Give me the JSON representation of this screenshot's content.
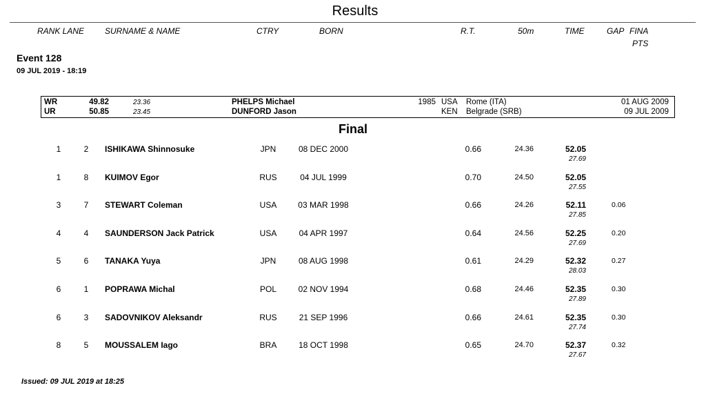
{
  "header": {
    "title": "Results",
    "columns": {
      "rank_lane": "RANK LANE",
      "name": "SURNAME & NAME",
      "ctry": "CTRY",
      "born": "BORN",
      "rt": "R.T.",
      "split": "50m",
      "time": "TIME",
      "gap": "GAP",
      "fina": "FINA",
      "pts": "PTS"
    }
  },
  "event": {
    "name": "Event 128",
    "datetime": "09 JUL 2019 - 18:19"
  },
  "records": [
    {
      "code": "WR",
      "time": "49.82",
      "split": "23.36",
      "name": "PHELPS Michael",
      "born": "1985",
      "ctry": "USA",
      "place": "Rome (ITA)",
      "date": "01 AUG 2009"
    },
    {
      "code": "UR",
      "time": "50.85",
      "split": "23.45",
      "name": "DUNFORD Jason",
      "born": "",
      "ctry": "KEN",
      "place": "Belgrade (SRB)",
      "date": "09 JUL 2009"
    }
  ],
  "phase": "Final",
  "results": [
    {
      "rank": "1",
      "lane": "2",
      "name": "ISHIKAWA Shinnosuke",
      "ctry": "JPN",
      "born": "08 DEC 2000",
      "rt": "0.66",
      "split50": "24.36",
      "time": "52.05",
      "split100": "27.69",
      "gap": ""
    },
    {
      "rank": "1",
      "lane": "8",
      "name": "KUIMOV Egor",
      "ctry": "RUS",
      "born": "04 JUL 1999",
      "rt": "0.70",
      "split50": "24.50",
      "time": "52.05",
      "split100": "27.55",
      "gap": ""
    },
    {
      "rank": "3",
      "lane": "7",
      "name": "STEWART Coleman",
      "ctry": "USA",
      "born": "03 MAR 1998",
      "rt": "0.66",
      "split50": "24.26",
      "time": "52.11",
      "split100": "27.85",
      "gap": "0.06"
    },
    {
      "rank": "4",
      "lane": "4",
      "name": "SAUNDERSON Jack Patrick",
      "ctry": "USA",
      "born": "04 APR 1997",
      "rt": "0.64",
      "split50": "24.56",
      "time": "52.25",
      "split100": "27.69",
      "gap": "0.20"
    },
    {
      "rank": "5",
      "lane": "6",
      "name": "TANAKA Yuya",
      "ctry": "JPN",
      "born": "08 AUG 1998",
      "rt": "0.61",
      "split50": "24.29",
      "time": "52.32",
      "split100": "28.03",
      "gap": "0.27"
    },
    {
      "rank": "6",
      "lane": "1",
      "name": "POPRAWA Michal",
      "ctry": "POL",
      "born": "02 NOV 1994",
      "rt": "0.68",
      "split50": "24.46",
      "time": "52.35",
      "split100": "27.89",
      "gap": "0.30"
    },
    {
      "rank": "6",
      "lane": "3",
      "name": "SADOVNIKOV Aleksandr",
      "ctry": "RUS",
      "born": "21 SEP 1996",
      "rt": "0.66",
      "split50": "24.61",
      "time": "52.35",
      "split100": "27.74",
      "gap": "0.30"
    },
    {
      "rank": "8",
      "lane": "5",
      "name": "MOUSSALEM Iago",
      "ctry": "BRA",
      "born": "18 OCT 1998",
      "rt": "0.65",
      "split50": "24.70",
      "time": "52.37",
      "split100": "27.67",
      "gap": "0.32"
    }
  ],
  "footer": {
    "issued": "Issued: 09 JUL 2019 at 18:25"
  }
}
